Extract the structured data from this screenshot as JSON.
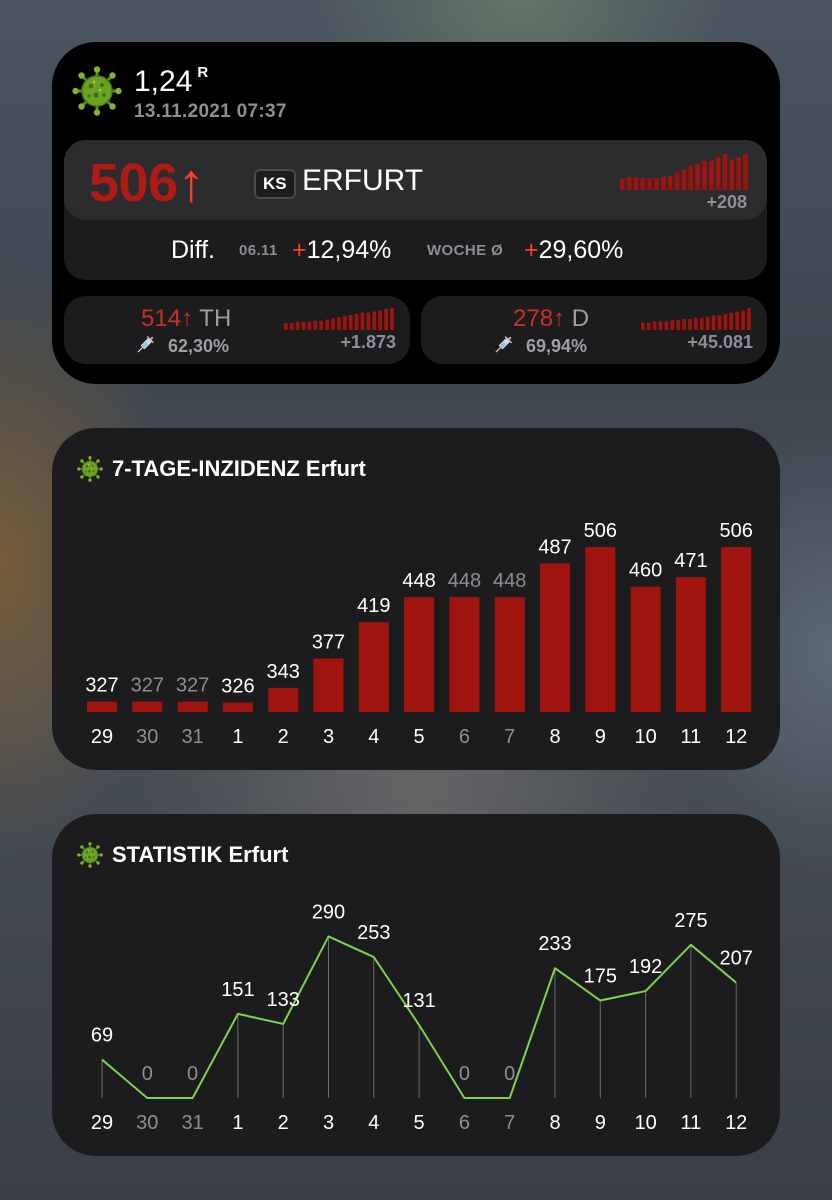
{
  "header": {
    "r_value": "1,24",
    "r_label": "R",
    "timestamp": "13.11.2021 07:37"
  },
  "main": {
    "incidence": "506",
    "arrow": "↑",
    "badge": "KS",
    "city": "ERFURT",
    "spark_sum": "+208",
    "spark": [
      10,
      12,
      12,
      11,
      11,
      11,
      12,
      13,
      16,
      19,
      22,
      24,
      27,
      27,
      30,
      33,
      28,
      30,
      33
    ],
    "diff_label": "Diff.",
    "diff_date": "06.11",
    "diff_plus": "+",
    "diff_value": "12,94%",
    "week_label": "WOCHE Ø",
    "week_plus": "+",
    "week_value": "29,60%"
  },
  "state": {
    "value": "514",
    "arrow": "↑",
    "region": "TH",
    "vacc": "62,30%",
    "sum": "+1.873",
    "spark": [
      6,
      6,
      7,
      7,
      7,
      8,
      8,
      9,
      10,
      11,
      12,
      13,
      14,
      15,
      15,
      16,
      17,
      18,
      19
    ]
  },
  "country": {
    "value": "278",
    "arrow": "↑",
    "region": "D",
    "vacc": "69,94%",
    "sum": "+45.081",
    "spark": [
      6,
      6,
      7,
      7,
      7,
      8,
      8,
      9,
      9,
      10,
      10,
      11,
      12,
      12,
      13,
      14,
      15,
      16,
      18
    ]
  },
  "incidence_widget": {
    "title": "7-TAGE-INZIDENZ Erfurt"
  },
  "stats_widget": {
    "title": "STATISTIK Erfurt"
  },
  "colors": {
    "bar": "#a0140f",
    "line": "#7ed14a",
    "accent_red": "#ff3b30"
  },
  "chart_data": [
    {
      "type": "bar",
      "title": "7-TAGE-INZIDENZ Erfurt",
      "categories": [
        "29",
        "30",
        "31",
        "1",
        "2",
        "3",
        "4",
        "5",
        "6",
        "7",
        "8",
        "9",
        "10",
        "11",
        "12"
      ],
      "dimmed_categories": [
        "30",
        "31",
        "6",
        "7"
      ],
      "values": [
        327,
        327,
        327,
        326,
        343,
        377,
        419,
        448,
        448,
        448,
        487,
        506,
        460,
        471,
        506
      ],
      "value_labels": [
        "327",
        "327",
        "327",
        "326",
        "343",
        "377",
        "419",
        "448",
        "448",
        "448",
        "487",
        "506",
        "460",
        "471",
        "506"
      ]
    },
    {
      "type": "line",
      "title": "STATISTIK Erfurt",
      "categories": [
        "29",
        "30",
        "31",
        "1",
        "2",
        "3",
        "4",
        "5",
        "6",
        "7",
        "8",
        "9",
        "10",
        "11",
        "12"
      ],
      "dimmed_categories": [
        "30",
        "31",
        "6",
        "7"
      ],
      "values": [
        69,
        0,
        0,
        151,
        133,
        290,
        253,
        131,
        0,
        0,
        233,
        175,
        192,
        275,
        207
      ],
      "value_labels": [
        "69",
        "0",
        "0",
        "151",
        "133",
        "290",
        "253",
        "131",
        "0",
        "0",
        "233",
        "175",
        "192",
        "275",
        "207"
      ]
    }
  ]
}
